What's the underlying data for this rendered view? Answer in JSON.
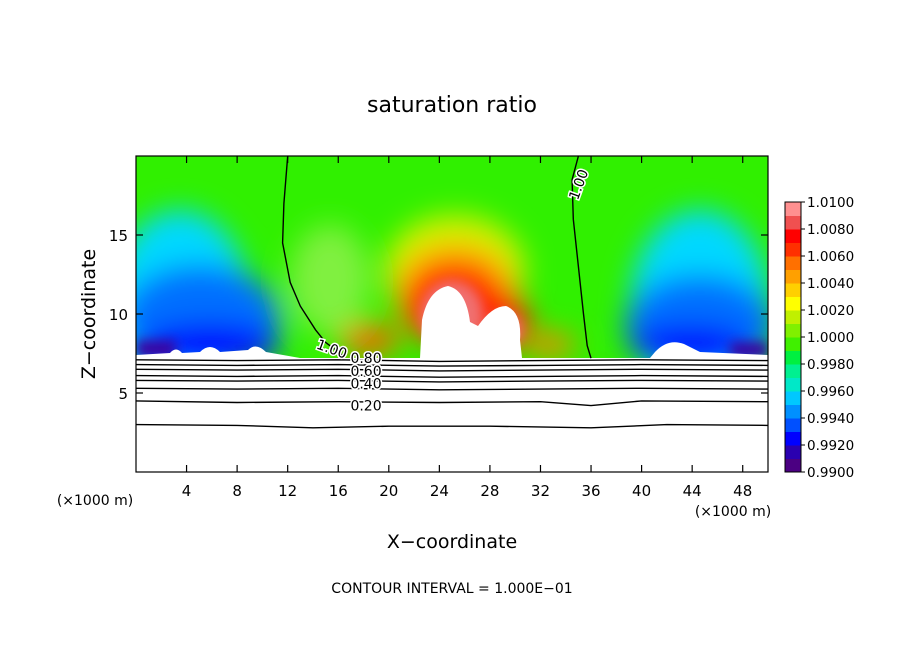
{
  "chart_data": {
    "type": "heatmap",
    "title": "saturation ratio",
    "xlabel": "X−coordinate",
    "ylabel": "Z−coordinate",
    "x_unit_left": "(×1000 m)",
    "x_unit_right": "(×1000 m)",
    "footer": "CONTOUR INTERVAL = 1.000E−01",
    "xlim": [
      0,
      50
    ],
    "ylim": [
      0,
      20
    ],
    "x_ticks": [
      4,
      8,
      12,
      16,
      20,
      24,
      28,
      32,
      36,
      40,
      44,
      48
    ],
    "x_tick_labels": [
      "4",
      "8",
      "12",
      "16",
      "20",
      "24",
      "28",
      "32",
      "36",
      "40",
      "44",
      "48"
    ],
    "y_ticks": [
      5,
      10,
      15
    ],
    "y_tick_labels": [
      "5",
      "10",
      "15"
    ],
    "colorbar": {
      "min": 0.99,
      "max": 1.01,
      "labels": [
        "1.0100",
        "1.0080",
        "1.0060",
        "1.0040",
        "1.0020",
        "1.0000",
        "0.9980",
        "0.9960",
        "0.9940",
        "0.9920",
        "0.9900"
      ],
      "colors": [
        "#4b0082",
        "#2a00b0",
        "#0000ff",
        "#0050ff",
        "#0090ff",
        "#00c8ff",
        "#00e8c8",
        "#00f090",
        "#00f040",
        "#40f000",
        "#80f000",
        "#c0f000",
        "#ffff00",
        "#ffd000",
        "#ffa000",
        "#ff7000",
        "#ff3000",
        "#ff0000",
        "#f05050",
        "#ff9090"
      ]
    },
    "contour_labels": [
      {
        "text": "1.00",
        "x": 35,
        "z": 18.2
      },
      {
        "text": "1.00",
        "x": 15.5,
        "z": 7.8
      },
      {
        "text": "0.80",
        "x": 18.2,
        "z": 7.2
      },
      {
        "text": "0.60",
        "x": 18.2,
        "z": 6.4
      },
      {
        "text": "0.40",
        "x": 18.2,
        "z": 5.6
      },
      {
        "text": "0.20",
        "x": 18.2,
        "z": 4.2
      }
    ],
    "contour_lines": [
      {
        "value": "1.00",
        "points": [
          [
            12,
            20
          ],
          [
            11.7,
            17
          ],
          [
            11.6,
            14.5
          ],
          [
            12.2,
            12
          ],
          [
            13,
            10.5
          ],
          [
            14.2,
            9
          ],
          [
            15,
            8.2
          ],
          [
            16.5,
            7.3
          ]
        ]
      },
      {
        "value": "1.00",
        "points": [
          [
            35,
            20
          ],
          [
            34.5,
            18.5
          ],
          [
            34.6,
            16
          ],
          [
            35,
            13
          ],
          [
            35.4,
            10
          ],
          [
            35.7,
            8
          ],
          [
            36,
            7.2
          ]
        ]
      },
      {
        "value": "contour",
        "points": [
          [
            0,
            7.1
          ],
          [
            8,
            7.05
          ],
          [
            16,
            7.1
          ],
          [
            24,
            7.0
          ],
          [
            32,
            7.05
          ],
          [
            40,
            7.1
          ],
          [
            50,
            7.05
          ]
        ]
      },
      {
        "value": "contour",
        "points": [
          [
            0,
            6.8
          ],
          [
            8,
            6.75
          ],
          [
            16,
            6.8
          ],
          [
            24,
            6.7
          ],
          [
            32,
            6.75
          ],
          [
            40,
            6.8
          ],
          [
            50,
            6.75
          ]
        ]
      },
      {
        "value": "contour",
        "points": [
          [
            0,
            6.5
          ],
          [
            8,
            6.45
          ],
          [
            16,
            6.5
          ],
          [
            24,
            6.4
          ],
          [
            32,
            6.45
          ],
          [
            40,
            6.5
          ],
          [
            50,
            6.45
          ]
        ]
      },
      {
        "value": "0.60",
        "points": [
          [
            0,
            6.1
          ],
          [
            8,
            6.05
          ],
          [
            16,
            6.1
          ],
          [
            24,
            6.0
          ],
          [
            32,
            6.05
          ],
          [
            40,
            6.1
          ],
          [
            50,
            6.05
          ]
        ]
      },
      {
        "value": "contour",
        "points": [
          [
            0,
            5.8
          ],
          [
            8,
            5.75
          ],
          [
            16,
            5.8
          ],
          [
            24,
            5.7
          ],
          [
            32,
            5.75
          ],
          [
            40,
            5.8
          ],
          [
            50,
            5.75
          ]
        ]
      },
      {
        "value": "0.40",
        "points": [
          [
            0,
            5.3
          ],
          [
            8,
            5.25
          ],
          [
            16,
            5.3
          ],
          [
            24,
            5.2
          ],
          [
            32,
            5.25
          ],
          [
            40,
            5.3
          ],
          [
            50,
            5.25
          ]
        ]
      },
      {
        "value": "0.20",
        "points": [
          [
            0,
            4.5
          ],
          [
            8,
            4.4
          ],
          [
            16,
            4.45
          ],
          [
            24,
            4.4
          ],
          [
            32,
            4.45
          ],
          [
            36,
            4.2
          ],
          [
            40,
            4.5
          ],
          [
            50,
            4.45
          ]
        ]
      },
      {
        "value": "contour",
        "points": [
          [
            0,
            3.0
          ],
          [
            8,
            2.95
          ],
          [
            14,
            2.8
          ],
          [
            20,
            2.9
          ],
          [
            28,
            2.9
          ],
          [
            36,
            2.8
          ],
          [
            42,
            3.0
          ],
          [
            50,
            2.95
          ]
        ]
      }
    ],
    "cloud_base_z": 7.3
  }
}
